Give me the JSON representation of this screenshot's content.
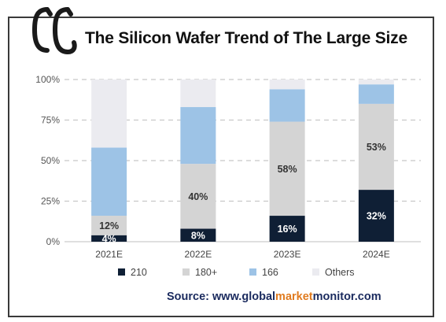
{
  "header": {
    "title": "The Silicon Wafer Trend of The Large Size"
  },
  "source": {
    "prefix": "Source: www.",
    "part_global": "global",
    "part_market": "market",
    "part_monitor": "monitor",
    "suffix": ".com"
  },
  "colors": {
    "brand_dark": "#1a2a5e",
    "brand_orange": "#e07b1f",
    "series_210": "#0f1f35",
    "series_180plus": "#d4d4d4",
    "series_166": "#9dc3e6",
    "series_others": "#ebebf0"
  },
  "chart_data": {
    "type": "bar",
    "stacked": true,
    "categories": [
      "2021E",
      "2022E",
      "2023E",
      "2024E"
    ],
    "series": [
      {
        "name": "210",
        "values": [
          4,
          8,
          16,
          32
        ]
      },
      {
        "name": "180+",
        "values": [
          12,
          40,
          58,
          53
        ]
      },
      {
        "name": "166",
        "values": [
          42,
          35,
          20,
          12
        ]
      },
      {
        "name": "Others",
        "values": [
          42,
          17,
          6,
          3
        ]
      }
    ],
    "data_labels": [
      {
        "series": "210",
        "labels": [
          "4%",
          "8%",
          "16%",
          "32%"
        ]
      },
      {
        "series": "180+",
        "labels": [
          "12%",
          "40%",
          "58%",
          "53%"
        ]
      }
    ],
    "y_ticks": [
      "0%",
      "25%",
      "50%",
      "75%",
      "100%"
    ],
    "ylim": [
      0,
      100
    ],
    "grid": true,
    "legend_position": "bottom"
  }
}
